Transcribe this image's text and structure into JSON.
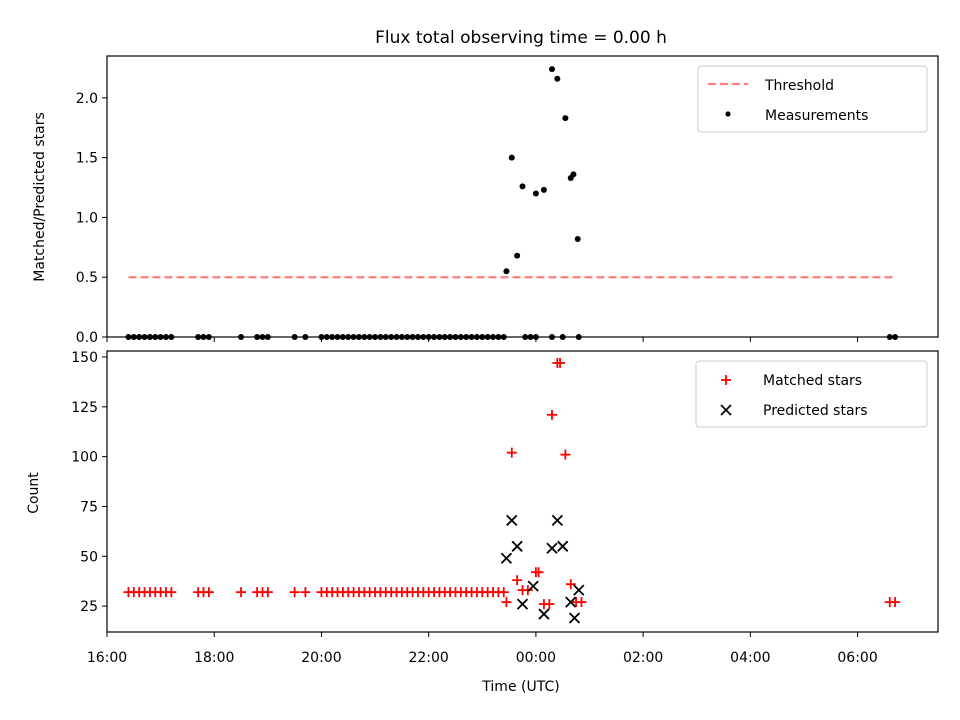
{
  "figure": {
    "title": "Flux total observing time = 0.00 h"
  },
  "chart_data": [
    {
      "type": "scatter",
      "panel": "top",
      "title": "Flux total observing time = 0.00 h",
      "xlabel": "",
      "ylabel": "Matched/Predicted stars",
      "xlim": [
        -8.0,
        7.5
      ],
      "ylim": [
        0,
        2.35
      ],
      "yticks": [
        0.0,
        0.5,
        1.0,
        1.5,
        2.0
      ],
      "ytick_labels": [
        "0.0",
        "0.5",
        "1.0",
        "1.5",
        "2.0"
      ],
      "grid": false,
      "legend_position": "top-right",
      "series": [
        {
          "name": "Threshold",
          "kind": "dashed-line",
          "color": "#ff7f7f",
          "x": [
            -7.6,
            6.7
          ],
          "y": [
            0.5,
            0.5
          ]
        },
        {
          "name": "Measurements",
          "kind": "points",
          "color": "#000000",
          "x": [
            -7.6,
            -7.5,
            -7.4,
            -7.3,
            -7.2,
            -7.1,
            -7.0,
            -6.9,
            -6.8,
            -6.3,
            -6.2,
            -6.1,
            -5.5,
            -5.2,
            -5.1,
            -5.0,
            -4.5,
            -4.3,
            -4.0,
            -3.9,
            -3.8,
            -3.7,
            -3.6,
            -3.5,
            -3.4,
            -3.3,
            -3.2,
            -3.1,
            -3.0,
            -2.9,
            -2.8,
            -2.7,
            -2.6,
            -2.5,
            -2.4,
            -2.3,
            -2.2,
            -2.1,
            -2.0,
            -1.9,
            -1.8,
            -1.7,
            -1.6,
            -1.5,
            -1.4,
            -1.3,
            -1.2,
            -1.1,
            -1.0,
            -0.9,
            -0.8,
            -0.7,
            -0.6,
            -0.2,
            -0.1,
            0.0,
            0.3,
            0.5,
            0.8,
            -0.55,
            -0.45,
            -0.35,
            -0.25,
            0.0,
            0.15,
            0.3,
            0.4,
            0.55,
            0.65,
            0.7,
            0.78,
            6.6,
            6.7
          ],
          "y": [
            0,
            0,
            0,
            0,
            0,
            0,
            0,
            0,
            0,
            0,
            0,
            0,
            0,
            0,
            0,
            0,
            0,
            0,
            0,
            0,
            0,
            0,
            0,
            0,
            0,
            0,
            0,
            0,
            0,
            0,
            0,
            0,
            0,
            0,
            0,
            0,
            0,
            0,
            0,
            0,
            0,
            0,
            0,
            0,
            0,
            0,
            0,
            0,
            0,
            0,
            0,
            0,
            0,
            0,
            0,
            0,
            0,
            0,
            0,
            0.55,
            1.5,
            0.68,
            1.26,
            1.2,
            1.23,
            2.24,
            2.16,
            1.83,
            1.33,
            1.36,
            0.82,
            0,
            0
          ]
        }
      ]
    },
    {
      "type": "scatter",
      "panel": "bottom",
      "xlabel": "Time (UTC)",
      "ylabel": "Count",
      "xlim": [
        -8.0,
        7.5
      ],
      "ylim": [
        12,
        153
      ],
      "yticks": [
        25,
        50,
        75,
        100,
        125,
        150
      ],
      "ytick_labels": [
        "25",
        "50",
        "75",
        "100",
        "125",
        "150"
      ],
      "xticks": [
        -8,
        -6,
        -4,
        -2,
        0,
        2,
        4,
        6
      ],
      "xtick_labels": [
        "16:00",
        "18:00",
        "20:00",
        "22:00",
        "00:00",
        "02:00",
        "04:00",
        "06:00"
      ],
      "grid": false,
      "legend_position": "top-right",
      "series": [
        {
          "name": "Matched stars",
          "marker": "plus",
          "color": "#ff0000",
          "x": [
            -7.6,
            -7.5,
            -7.4,
            -7.3,
            -7.2,
            -7.1,
            -7.0,
            -6.9,
            -6.8,
            -6.3,
            -6.2,
            -6.1,
            -5.5,
            -5.2,
            -5.1,
            -5.0,
            -4.5,
            -4.3,
            -4.0,
            -3.9,
            -3.8,
            -3.7,
            -3.6,
            -3.5,
            -3.4,
            -3.3,
            -3.2,
            -3.1,
            -3.0,
            -2.9,
            -2.8,
            -2.7,
            -2.6,
            -2.5,
            -2.4,
            -2.3,
            -2.2,
            -2.1,
            -2.0,
            -1.9,
            -1.8,
            -1.7,
            -1.6,
            -1.5,
            -1.4,
            -1.3,
            -1.2,
            -1.1,
            -1.0,
            -0.9,
            -0.8,
            -0.7,
            -0.6,
            -0.55,
            -0.45,
            -0.35,
            -0.25,
            -0.15,
            0.0,
            0.05,
            0.15,
            0.25,
            0.3,
            0.4,
            0.45,
            0.55,
            0.65,
            0.75,
            0.85,
            6.6,
            6.7
          ],
          "y": [
            32,
            32,
            32,
            32,
            32,
            32,
            32,
            32,
            32,
            32,
            32,
            32,
            32,
            32,
            32,
            32,
            32,
            32,
            32,
            32,
            32,
            32,
            32,
            32,
            32,
            32,
            32,
            32,
            32,
            32,
            32,
            32,
            32,
            32,
            32,
            32,
            32,
            32,
            32,
            32,
            32,
            32,
            32,
            32,
            32,
            32,
            32,
            32,
            32,
            32,
            32,
            32,
            32,
            27,
            102,
            38,
            33,
            33,
            42,
            42,
            26,
            26,
            121,
            147,
            147,
            101,
            36,
            27,
            27,
            27,
            27
          ]
        },
        {
          "name": "Predicted stars",
          "marker": "x",
          "color": "#000000",
          "x": [
            -0.55,
            -0.45,
            -0.35,
            -0.25,
            -0.05,
            0.15,
            0.3,
            0.4,
            0.5,
            0.65,
            0.72,
            0.8
          ],
          "y": [
            49,
            68,
            55,
            26,
            35,
            21,
            54,
            68,
            55,
            27,
            19,
            33
          ]
        }
      ]
    }
  ]
}
